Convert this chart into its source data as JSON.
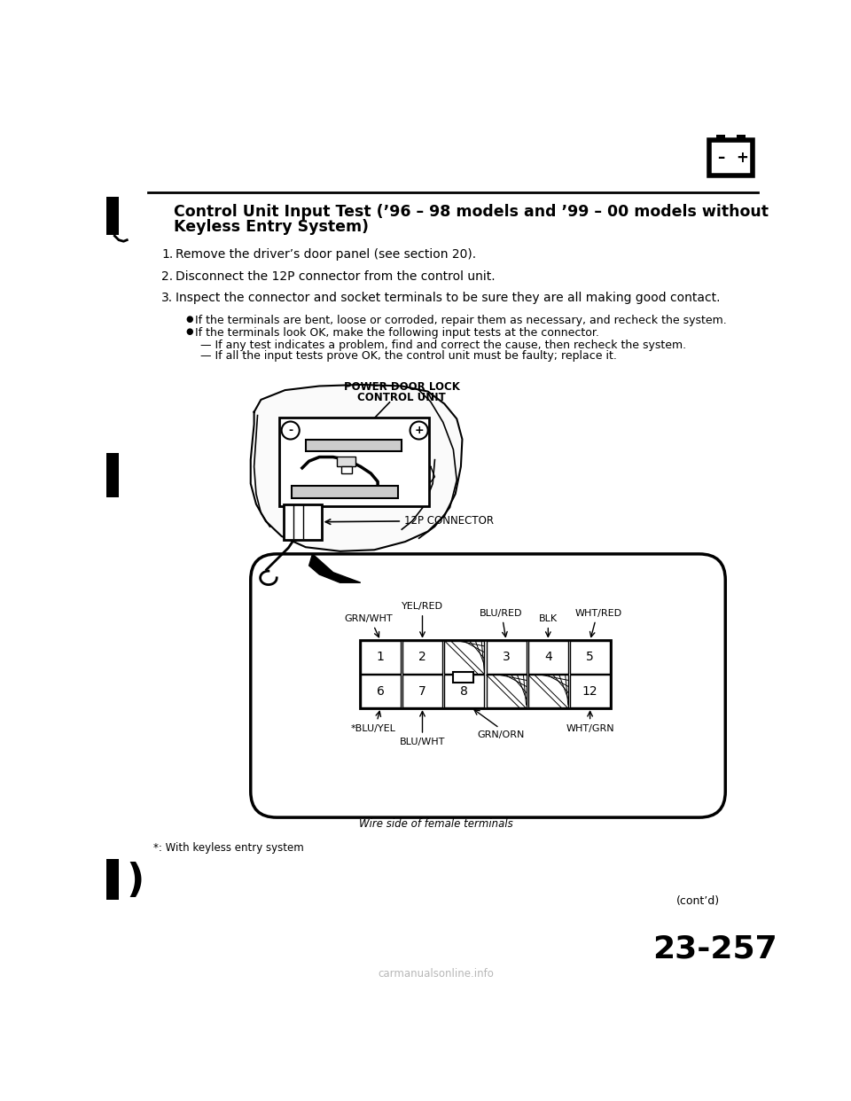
{
  "title_line1": "Control Unit Input Test (’96 – 98 models and ’99 – 00 models without",
  "title_line2": "Keyless Entry System)",
  "step1": "Remove the driver’s door panel (see section 20).",
  "step2": "Disconnect the 12P connector from the control unit.",
  "step3": "Inspect the connector and socket terminals to be sure they are all making good contact.",
  "bullet1": "If the terminals are bent, loose or corroded, repair them as necessary, and recheck the system.",
  "bullet2": "If the terminals look OK, make the following input tests at the connector.",
  "sub1": "If any test indicates a problem, find and correct the cause, then recheck the system.",
  "sub2": "If all the input tests prove OK, the control unit must be faulty; replace it.",
  "diagram_label_l1": "POWER DOOR LOCK",
  "diagram_label_l2": "CONTROL UNIT",
  "connector_label": "12P CONNECTOR",
  "wire_label": "Wire side of female terminals",
  "footnote": "*: With keyless entry system",
  "page_num": "23-257",
  "bg_color": "#ffffff",
  "text_color": "#000000"
}
